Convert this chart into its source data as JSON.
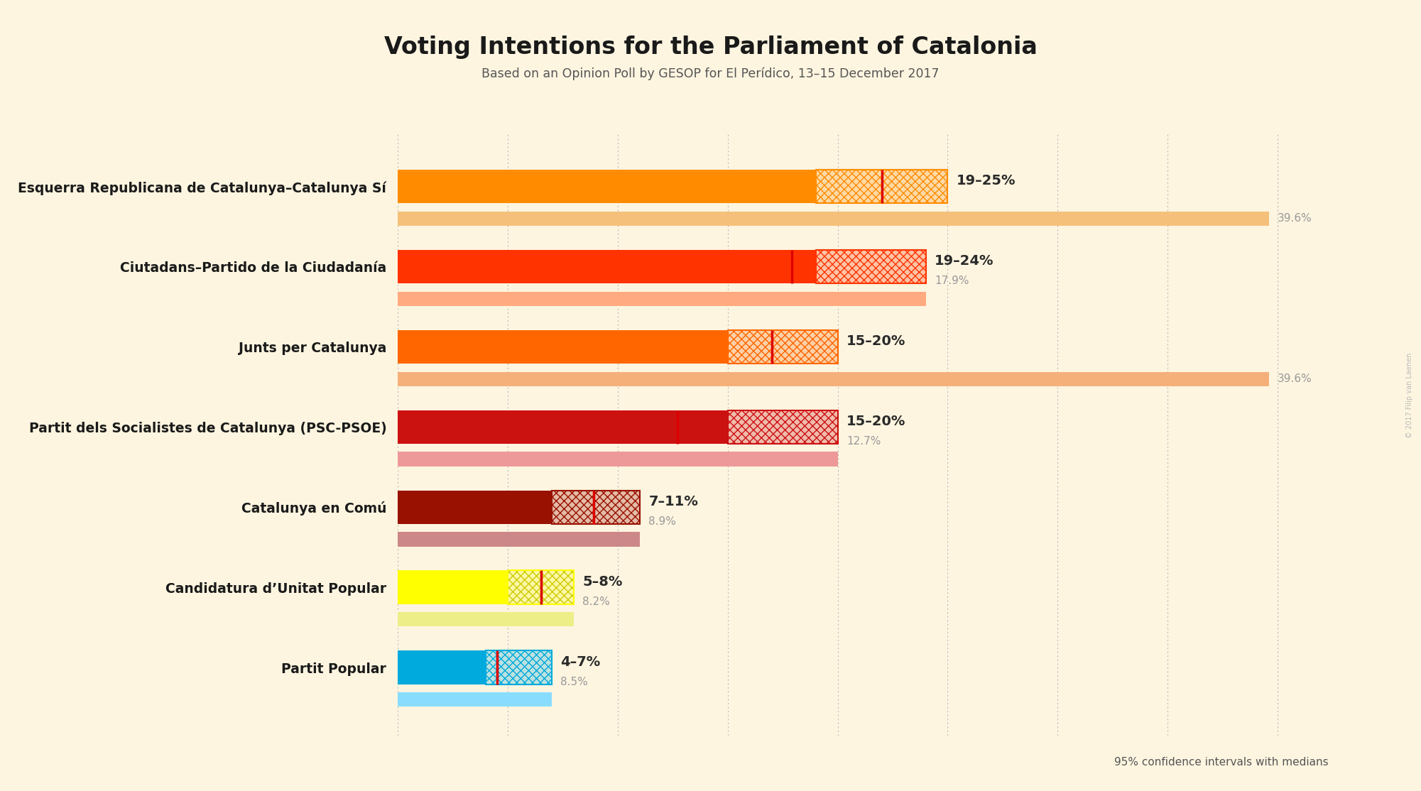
{
  "title": "Voting Intentions for the Parliament of Catalonia",
  "subtitle": "Based on an Opinion Poll by GESOP for El Perídico, 13–15 December 2017",
  "copyright": "© 2017 Filip van Laenen",
  "background_color": "#fdf5e0",
  "parties": [
    {
      "name": "Esquerra Republicana de Catalunya–Catalunya Sí",
      "low": 19,
      "high": 25,
      "median": 22,
      "ci_low": 19,
      "ci_high": 39.6,
      "label": "19–25%",
      "median_label": "39.6%",
      "bar_color": "#FF8C00",
      "ci_color": "#F5C07A",
      "hatch_color": "#FF8C00",
      "show_ci_label": true,
      "label_at_high": true
    },
    {
      "name": "Ciutadans–Partido de la Ciudadanía",
      "low": 19,
      "high": 24,
      "median": 17.9,
      "ci_low": 19,
      "ci_high": 24,
      "label": "19–24%",
      "median_label": "17.9%",
      "bar_color": "#FF3300",
      "ci_color": "#FFAA80",
      "hatch_color": "#FF3300",
      "show_ci_label": false,
      "label_at_high": true
    },
    {
      "name": "Junts per Catalunya",
      "low": 15,
      "high": 20,
      "median": 17,
      "ci_low": 15,
      "ci_high": 39.6,
      "label": "15–20%",
      "median_label": "39.6%",
      "bar_color": "#FF6600",
      "ci_color": "#F5B07A",
      "hatch_color": "#FF6600",
      "show_ci_label": true,
      "label_at_high": true
    },
    {
      "name": "Partit dels Socialistes de Catalunya (PSC-PSOE)",
      "low": 15,
      "high": 20,
      "median": 12.7,
      "ci_low": 15,
      "ci_high": 20,
      "label": "15–20%",
      "median_label": "12.7%",
      "bar_color": "#CC1111",
      "ci_color": "#EE9999",
      "hatch_color": "#CC1111",
      "show_ci_label": false,
      "label_at_high": true
    },
    {
      "name": "Catalunya en Comú",
      "low": 7,
      "high": 11,
      "median": 8.9,
      "ci_low": 7,
      "ci_high": 11,
      "label": "7–11%",
      "median_label": "8.9%",
      "bar_color": "#991100",
      "ci_color": "#CC8888",
      "hatch_color": "#991100",
      "show_ci_label": false,
      "label_at_high": true
    },
    {
      "name": "Candidatura d’Unitat Popular",
      "low": 5,
      "high": 8,
      "median": 6.5,
      "ci_low": 5,
      "ci_high": 8,
      "label": "5–8%",
      "median_label": "8.2%",
      "bar_color": "#FFFF00",
      "ci_color": "#EEEE88",
      "hatch_color": "#CCCC00",
      "show_ci_label": false,
      "label_at_high": true
    },
    {
      "name": "Partit Popular",
      "low": 4,
      "high": 7,
      "median": 4.5,
      "ci_low": 4,
      "ci_high": 7,
      "label": "4–7%",
      "median_label": "8.5%",
      "bar_color": "#00AADD",
      "ci_color": "#88DDFF",
      "hatch_color": "#00AADD",
      "show_ci_label": false,
      "label_at_high": true
    }
  ],
  "confidence_note": "95% confidence intervals with medians",
  "xmax": 42,
  "median_line_color": "#DD0000",
  "grid_color": "#BBBBBB",
  "dotted_grid_positions": [
    0,
    5,
    10,
    15,
    20,
    25,
    30,
    35,
    40
  ]
}
